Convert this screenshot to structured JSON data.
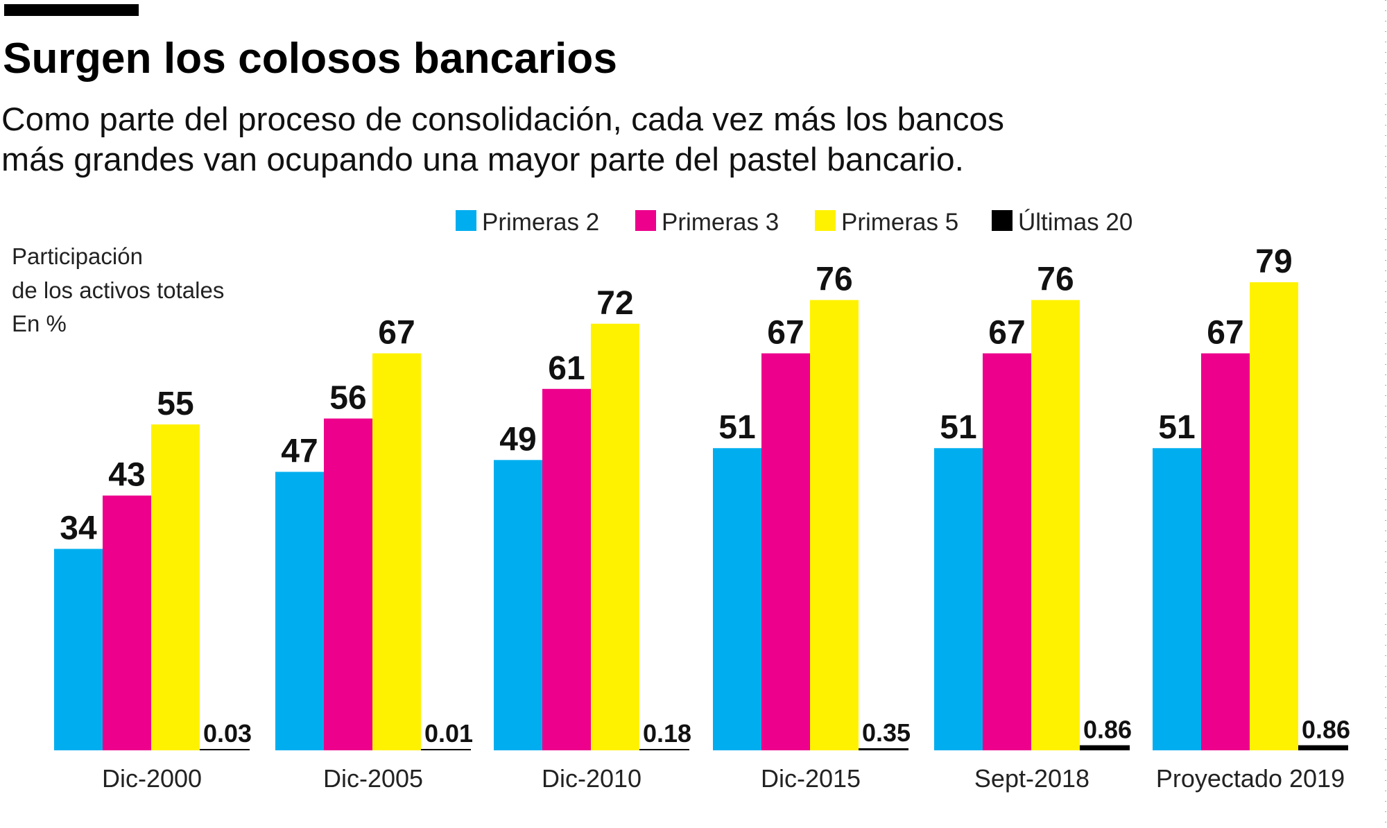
{
  "chart_data": {
    "type": "bar",
    "title": "Surgen los colosos bancarios",
    "subtitle": [
      "Como parte del proceso de consolidación, cada vez más los bancos",
      "más grandes van ocupando una mayor parte del pastel bancario."
    ],
    "ylabel": [
      "Participación",
      "de los activos totales",
      "En %"
    ],
    "xlabel": "",
    "ylim": [
      0,
      80
    ],
    "grid": false,
    "legend_position": "top",
    "categories": [
      "Dic-2000",
      "Dic-2005",
      "Dic-2010",
      "Dic-2015",
      "Sept-2018",
      "Proyectado 2019"
    ],
    "series": [
      {
        "name": "Primeras 2",
        "color": "#00AEEF",
        "values": [
          34,
          47,
          49,
          51,
          51,
          51
        ],
        "labels": [
          "34",
          "47",
          "49",
          "51",
          "51",
          "51"
        ]
      },
      {
        "name": "Primeras 3",
        "color": "#EC008C",
        "values": [
          43,
          56,
          61,
          67,
          67,
          67
        ],
        "labels": [
          "43",
          "56",
          "61",
          "67",
          "67",
          "67"
        ]
      },
      {
        "name": "Primeras 5",
        "color": "#FFF200",
        "values": [
          55,
          67,
          72,
          76,
          76,
          79
        ],
        "labels": [
          "55",
          "67",
          "72",
          "76",
          "76",
          "79"
        ]
      },
      {
        "name": "Últimas 20",
        "color": "#000000",
        "values": [
          0.03,
          0.01,
          0.18,
          0.35,
          0.86,
          0.86
        ],
        "labels": [
          "0.03",
          "0.01",
          "0.18",
          "0.35",
          "0.86",
          "0.86"
        ]
      }
    ]
  }
}
